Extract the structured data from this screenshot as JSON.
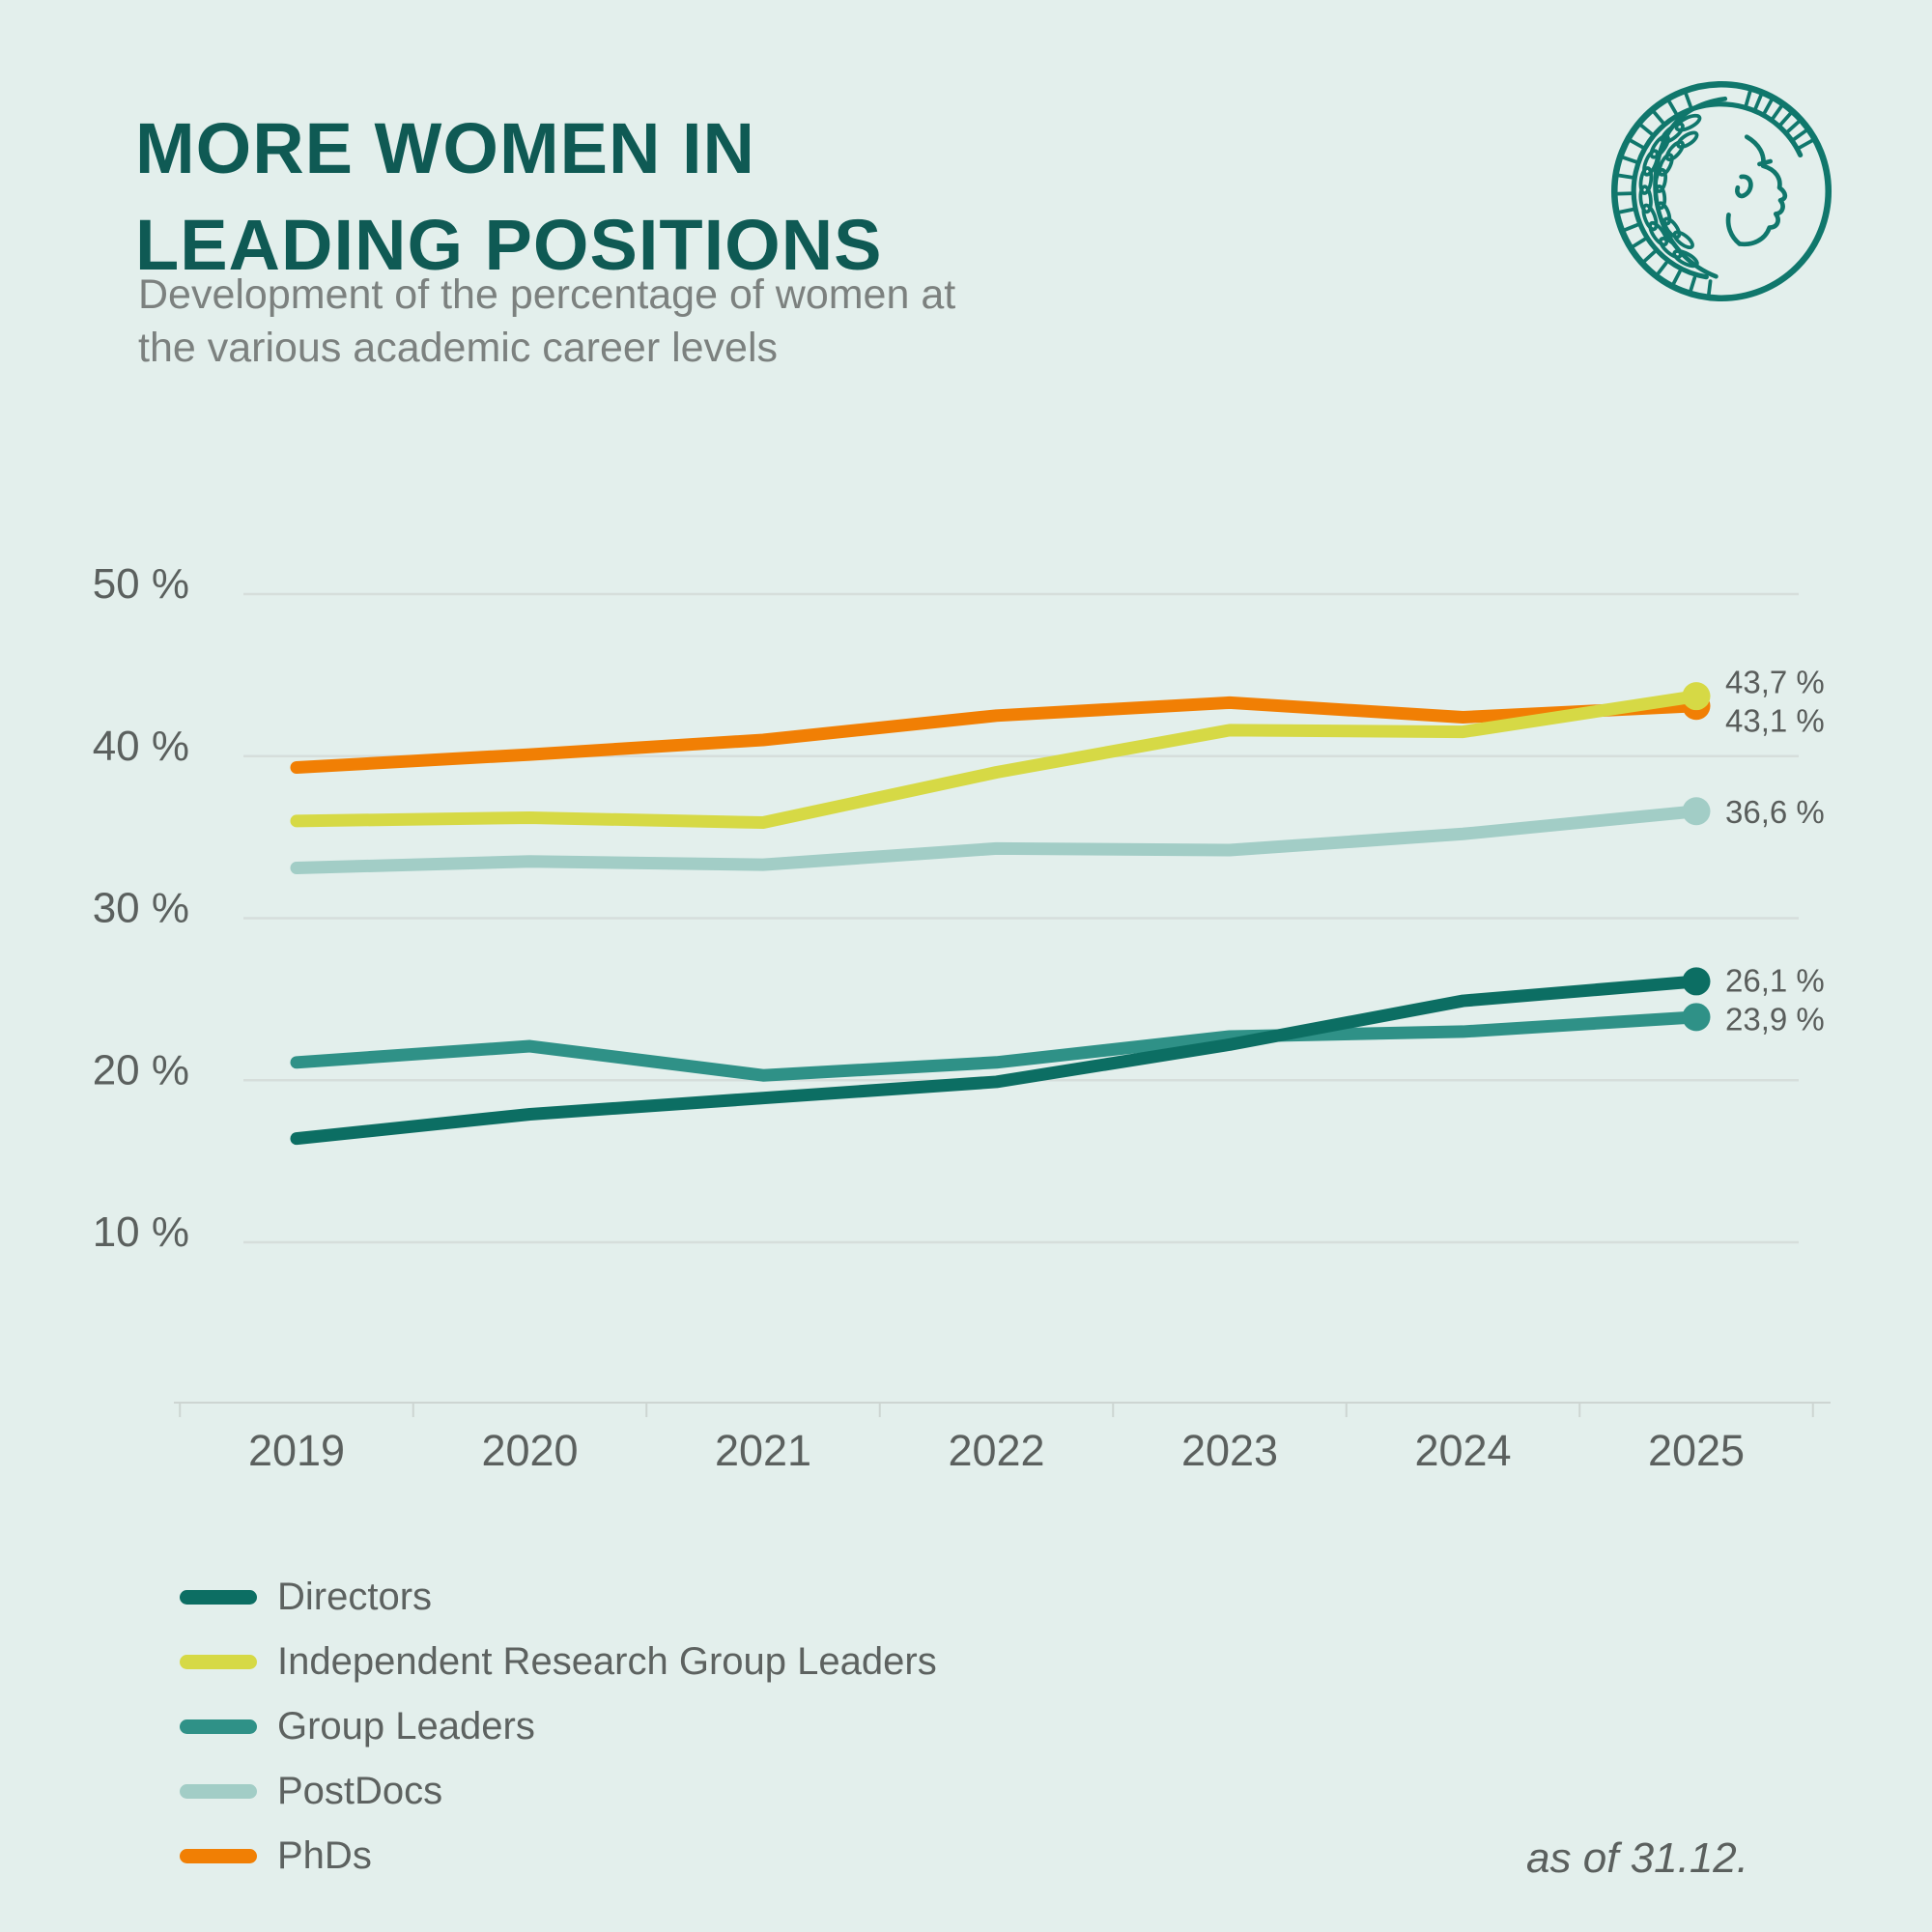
{
  "page": {
    "background_color": "#e3efec",
    "footnote": "as of 31.12."
  },
  "header": {
    "title_lines": [
      "MORE WOMEN IN",
      "LEADING POSITIONS"
    ],
    "title_color": "#0f5a54",
    "subtitle_lines": [
      "Development of the percentage of women at",
      "the various academic career levels"
    ]
  },
  "logo": {
    "label": "Max Planck Society Minerva emblem",
    "color": "#10776c"
  },
  "chart_data": {
    "type": "line",
    "title": "MORE WOMEN IN LEADING POSITIONS",
    "subtitle": "Development of the percentage of women at the various academic career levels",
    "x": [
      2019,
      2020,
      2021,
      2022,
      2023,
      2024,
      2025
    ],
    "y_ticks": [
      {
        "value": 50,
        "label": "50 %"
      },
      {
        "value": 40,
        "label": "40 %"
      },
      {
        "value": 30,
        "label": "30 %"
      },
      {
        "value": 20,
        "label": "20 %"
      },
      {
        "value": 10,
        "label": "10 %"
      }
    ],
    "ylim": [
      5,
      52
    ],
    "grid": true,
    "legend_position": "bottom-left",
    "series": [
      {
        "name": "Directors",
        "color": "#0c6e63",
        "values": [
          16.4,
          17.9,
          18.9,
          19.9,
          22.2,
          24.9,
          26.1
        ],
        "end_label": "26,1 %"
      },
      {
        "name": "Independent Research Group Leaders",
        "color": "#d6d945",
        "values": [
          36.0,
          36.2,
          35.9,
          39.0,
          41.6,
          41.5,
          43.7
        ],
        "end_label": "43,7 %"
      },
      {
        "name": "Group Leaders",
        "color": "#2f9187",
        "values": [
          21.1,
          22.1,
          20.3,
          21.1,
          22.7,
          23.0,
          23.9
        ],
        "end_label": "23,9 %"
      },
      {
        "name": "PostDocs",
        "color": "#a2cdc6",
        "values": [
          33.1,
          33.5,
          33.3,
          34.3,
          34.2,
          35.2,
          36.6
        ],
        "end_label": "36,6 %"
      },
      {
        "name": "PhDs",
        "color": "#f17f04",
        "values": [
          39.3,
          40.1,
          41.0,
          42.5,
          43.3,
          42.4,
          43.1
        ],
        "end_label": "43,1 %"
      }
    ]
  }
}
